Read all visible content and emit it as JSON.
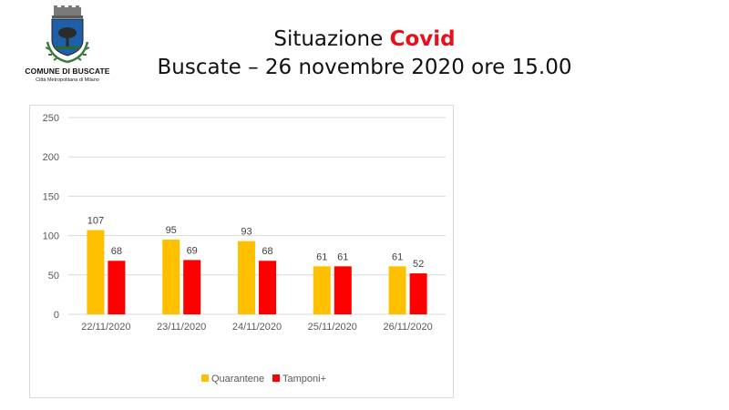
{
  "logo": {
    "name": "COMUNE DI BUSCATE",
    "subtitle": "Città Metropolitana di Milano"
  },
  "title": {
    "line1_prefix": "Situazione ",
    "line1_highlight": "Covid",
    "line2": "Buscate – 26 novembre 2020 ore 15.00"
  },
  "colors": {
    "highlight": "#e8101a"
  },
  "chart_data": {
    "type": "bar",
    "categories": [
      "22/11/2020",
      "23/11/2020",
      "24/11/2020",
      "25/11/2020",
      "26/11/2020"
    ],
    "series": [
      {
        "name": "Quarantene",
        "values": [
          107,
          95,
          93,
          61,
          61
        ],
        "color": "#ffc000"
      },
      {
        "name": "Tamponi+",
        "values": [
          68,
          69,
          68,
          61,
          52
        ],
        "color": "#ff0000"
      }
    ],
    "ylim": [
      0,
      250
    ],
    "yticks": [
      0,
      50,
      100,
      150,
      200,
      250
    ],
    "grid": true,
    "legend": "bottom",
    "data_labels": true
  }
}
